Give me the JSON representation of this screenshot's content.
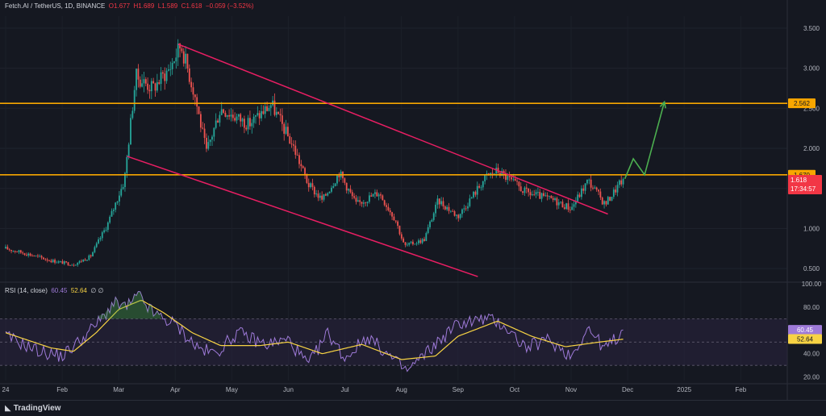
{
  "header": {
    "symbol": "Fetch.AI / TetherUS, 1D, BINANCE",
    "open": "O1.677",
    "high": "H1.689",
    "low": "L1.589",
    "close": "C1.618",
    "change": "−0.059 (−3.52%)"
  },
  "rsi_header": {
    "label": "RSI (14, close)",
    "rsi_value": "60.45",
    "ma_value": "52.64",
    "extra": "∅ ∅"
  },
  "brand": {
    "name": "TradingView",
    "logo_icon": "tradingview-logo-icon"
  },
  "colors": {
    "background": "#151821",
    "up_candle": "#26a69a",
    "down_candle": "#ef5350",
    "channel": "#e91e63",
    "level": "#f7a600",
    "arrow": "#4caf50",
    "rsi_line": "#9e7ad8",
    "rsi_ma": "#f7d344",
    "rsi_band": "#2a2540"
  },
  "chart_data": [
    {
      "type": "candlestick",
      "symbol": "FETUSDT",
      "timeframe": "1D",
      "x_ticks": [
        "24",
        "Feb",
        "Mar",
        "Apr",
        "May",
        "Jun",
        "Jul",
        "Aug",
        "Sep",
        "Oct",
        "Nov",
        "Dec",
        "2025",
        "Feb"
      ],
      "y_ticks": [
        "3.500",
        "3.000",
        "2.500",
        "2.000",
        "1.500",
        "1.000",
        "0.500"
      ],
      "ylim": [
        0.35,
        3.65
      ],
      "price_path": [
        {
          "month": 0,
          "price": 0.75
        },
        {
          "month": 0.4,
          "price": 0.68
        },
        {
          "month": 0.8,
          "price": 0.6
        },
        {
          "month": 1.2,
          "price": 0.55
        },
        {
          "month": 1.5,
          "price": 0.65
        },
        {
          "month": 1.8,
          "price": 1.05
        },
        {
          "month": 2.1,
          "price": 1.6
        },
        {
          "month": 2.3,
          "price": 2.9
        },
        {
          "month": 2.6,
          "price": 2.75
        },
        {
          "month": 2.9,
          "price": 3.0
        },
        {
          "month": 3.1,
          "price": 3.3
        },
        {
          "month": 3.35,
          "price": 2.65
        },
        {
          "month": 3.55,
          "price": 1.95
        },
        {
          "month": 3.8,
          "price": 2.5
        },
        {
          "month": 4.3,
          "price": 2.3
        },
        {
          "month": 4.7,
          "price": 2.55
        },
        {
          "month": 5.1,
          "price": 2.0
        },
        {
          "month": 5.35,
          "price": 1.55
        },
        {
          "month": 5.6,
          "price": 1.35
        },
        {
          "month": 5.9,
          "price": 1.7
        },
        {
          "month": 6.2,
          "price": 1.3
        },
        {
          "month": 6.6,
          "price": 1.45
        },
        {
          "month": 6.9,
          "price": 1.1
        },
        {
          "month": 7.05,
          "price": 0.78
        },
        {
          "month": 7.4,
          "price": 0.86
        },
        {
          "month": 7.65,
          "price": 1.35
        },
        {
          "month": 8.0,
          "price": 1.15
        },
        {
          "month": 8.5,
          "price": 1.65
        },
        {
          "month": 8.7,
          "price": 1.72
        },
        {
          "month": 9.2,
          "price": 1.45
        },
        {
          "month": 9.7,
          "price": 1.35
        },
        {
          "month": 10.0,
          "price": 1.25
        },
        {
          "month": 10.3,
          "price": 1.6
        },
        {
          "month": 10.6,
          "price": 1.3
        },
        {
          "month": 10.95,
          "price": 1.65
        }
      ],
      "levels": [
        {
          "label": "2.562",
          "value": 2.562
        },
        {
          "label": "1.670",
          "value": 1.67
        }
      ],
      "current_price": {
        "label": "1.618",
        "value": 1.618,
        "countdown": "17:34:57"
      },
      "channel": {
        "upper": [
          {
            "month": 3.05,
            "price": 3.3
          },
          {
            "month": 10.65,
            "price": 1.18
          }
        ],
        "lower": [
          {
            "month": 2.15,
            "price": 1.9
          },
          {
            "month": 8.35,
            "price": 0.4
          }
        ]
      },
      "projection": [
        {
          "month": 10.95,
          "price": 1.62
        },
        {
          "month": 11.1,
          "price": 1.87
        },
        {
          "month": 11.3,
          "price": 1.67
        },
        {
          "month": 11.65,
          "price": 2.58
        }
      ]
    },
    {
      "type": "line",
      "name": "RSI (14, close)",
      "y_ticks": [
        "100.00",
        "80.00",
        "60.00",
        "40.00",
        "20.00"
      ],
      "ylim": [
        17,
        100
      ],
      "band": [
        30,
        70
      ],
      "rsi_path": [
        {
          "month": 0,
          "rsi": 55
        },
        {
          "month": 0.6,
          "rsi": 42
        },
        {
          "month": 1.0,
          "rsi": 38
        },
        {
          "month": 1.4,
          "rsi": 55
        },
        {
          "month": 1.7,
          "rsi": 70
        },
        {
          "month": 1.9,
          "rsi": 83
        },
        {
          "month": 2.15,
          "rsi": 80
        },
        {
          "month": 2.35,
          "rsi": 90
        },
        {
          "month": 2.6,
          "rsi": 75
        },
        {
          "month": 3.0,
          "rsi": 65
        },
        {
          "month": 3.4,
          "rsi": 45
        },
        {
          "month": 3.7,
          "rsi": 40
        },
        {
          "month": 4.1,
          "rsi": 58
        },
        {
          "month": 4.6,
          "rsi": 48
        },
        {
          "month": 5.0,
          "rsi": 52
        },
        {
          "month": 5.35,
          "rsi": 30
        },
        {
          "month": 5.7,
          "rsi": 58
        },
        {
          "month": 6.0,
          "rsi": 36
        },
        {
          "month": 6.4,
          "rsi": 55
        },
        {
          "month": 6.9,
          "rsi": 33
        },
        {
          "month": 7.1,
          "rsi": 25
        },
        {
          "month": 7.6,
          "rsi": 48
        },
        {
          "month": 8.0,
          "rsi": 66
        },
        {
          "month": 8.5,
          "rsi": 70
        },
        {
          "month": 8.8,
          "rsi": 65
        },
        {
          "month": 9.2,
          "rsi": 45
        },
        {
          "month": 9.6,
          "rsi": 52
        },
        {
          "month": 10.0,
          "rsi": 38
        },
        {
          "month": 10.3,
          "rsi": 62
        },
        {
          "month": 10.6,
          "rsi": 44
        },
        {
          "month": 10.95,
          "rsi": 60.45
        }
      ],
      "ma_path": [
        {
          "month": 0,
          "rsi": 58
        },
        {
          "month": 0.8,
          "rsi": 45
        },
        {
          "month": 1.2,
          "rsi": 42
        },
        {
          "month": 1.6,
          "rsi": 58
        },
        {
          "month": 2.0,
          "rsi": 78
        },
        {
          "month": 2.4,
          "rsi": 86
        },
        {
          "month": 2.8,
          "rsi": 75
        },
        {
          "month": 3.3,
          "rsi": 58
        },
        {
          "month": 3.8,
          "rsi": 47
        },
        {
          "month": 4.5,
          "rsi": 47
        },
        {
          "month": 5.0,
          "rsi": 50
        },
        {
          "month": 5.6,
          "rsi": 40
        },
        {
          "month": 6.3,
          "rsi": 48
        },
        {
          "month": 7.0,
          "rsi": 35
        },
        {
          "month": 7.6,
          "rsi": 38
        },
        {
          "month": 8.0,
          "rsi": 55
        },
        {
          "month": 8.7,
          "rsi": 68
        },
        {
          "month": 9.3,
          "rsi": 55
        },
        {
          "month": 9.9,
          "rsi": 46
        },
        {
          "month": 10.5,
          "rsi": 50
        },
        {
          "month": 10.95,
          "rsi": 52.64
        }
      ]
    }
  ]
}
